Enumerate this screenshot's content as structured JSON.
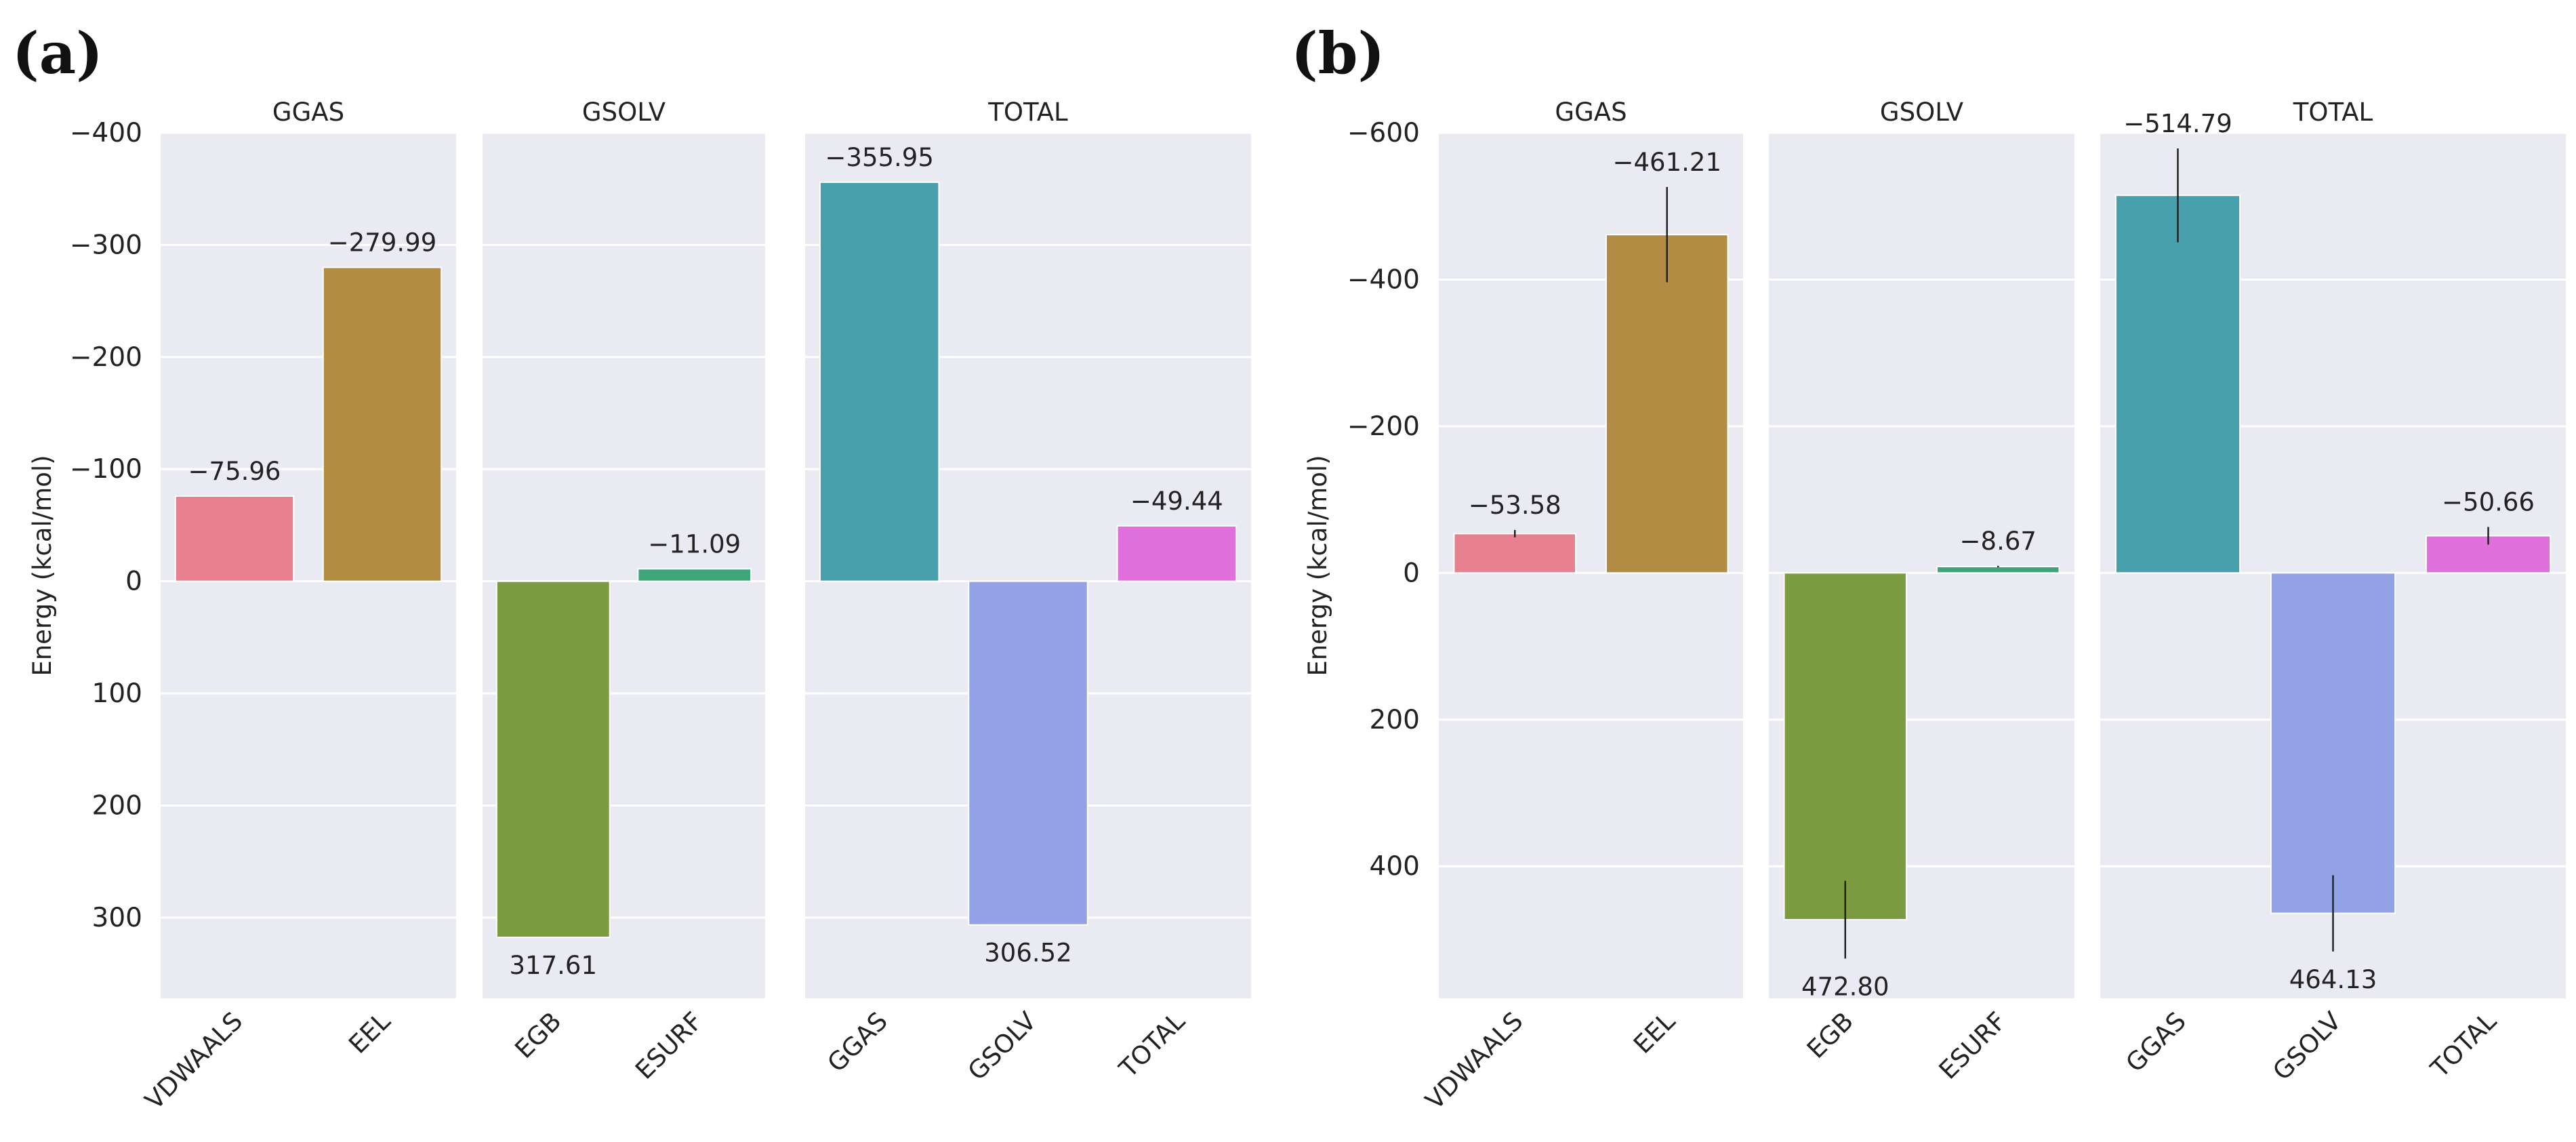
{
  "chart_data": [
    {
      "type": "bar",
      "panel_label": "(a)",
      "ylabel": "Energy (kcal/mol)",
      "y_axis_inverted": true,
      "ylim": [
        -400,
        372
      ],
      "yticks": [
        -400,
        -300,
        -200,
        -100,
        0,
        100,
        200,
        300
      ],
      "ytick_labels": [
        "−400",
        "−300",
        "−200",
        "−100",
        "0",
        "100",
        "200",
        "300"
      ],
      "facets": [
        {
          "title": "GGAS",
          "bars": [
            {
              "category": "VDWAALS",
              "value": -75.96,
              "label": "−75.96",
              "error": 0,
              "color": "#e8818f"
            },
            {
              "category": "EEL",
              "value": -279.99,
              "label": "−279.99",
              "error": 0,
              "color": "#b38c43"
            }
          ]
        },
        {
          "title": "GSOLV",
          "bars": [
            {
              "category": "EGB",
              "value": 317.61,
              "label": "317.61",
              "error": 0,
              "color": "#7c9b40"
            },
            {
              "category": "ESURF",
              "value": -11.09,
              "label": "−11.09",
              "error": 0,
              "color": "#3ea57b"
            }
          ]
        },
        {
          "title": "TOTAL",
          "bars": [
            {
              "category": "GGAS",
              "value": -355.95,
              "label": "−355.95",
              "error": 0,
              "color": "#48a0ad"
            },
            {
              "category": "GSOLV",
              "value": 306.52,
              "label": "306.52",
              "error": 0,
              "color": "#93a1e5"
            },
            {
              "category": "TOTAL",
              "value": -49.44,
              "label": "−49.44",
              "error": 0,
              "color": "#e070dc"
            }
          ]
        }
      ]
    },
    {
      "type": "bar",
      "panel_label": "(b)",
      "ylabel": "Energy (kcal/mol)",
      "y_axis_inverted": true,
      "ylim": [
        -600,
        580
      ],
      "yticks": [
        -600,
        -400,
        -200,
        0,
        200,
        400
      ],
      "ytick_labels": [
        "−600",
        "−400",
        "−200",
        "0",
        "200",
        "400"
      ],
      "facets": [
        {
          "title": "GGAS",
          "bars": [
            {
              "category": "VDWAALS",
              "value": -53.58,
              "label": "−53.58",
              "error": 5,
              "color": "#e8818f"
            },
            {
              "category": "EEL",
              "value": -461.21,
              "label": "−461.21",
              "error": 65,
              "color": "#b38c43"
            }
          ]
        },
        {
          "title": "GSOLV",
          "bars": [
            {
              "category": "EGB",
              "value": 472.8,
              "label": "472.80",
              "error": 53,
              "color": "#7c9b40"
            },
            {
              "category": "ESURF",
              "value": -8.67,
              "label": "−8.67",
              "error": 1,
              "color": "#3ea57b"
            }
          ]
        },
        {
          "title": "TOTAL",
          "bars": [
            {
              "category": "GGAS",
              "value": -514.79,
              "label": "−514.79",
              "error": 64,
              "color": "#48a0ad"
            },
            {
              "category": "GSOLV",
              "value": 464.13,
              "label": "464.13",
              "error": 52,
              "color": "#93a1e5"
            },
            {
              "category": "TOTAL",
              "value": -50.66,
              "label": "−50.66",
              "error": 12,
              "color": "#e070dc"
            }
          ]
        }
      ]
    }
  ]
}
